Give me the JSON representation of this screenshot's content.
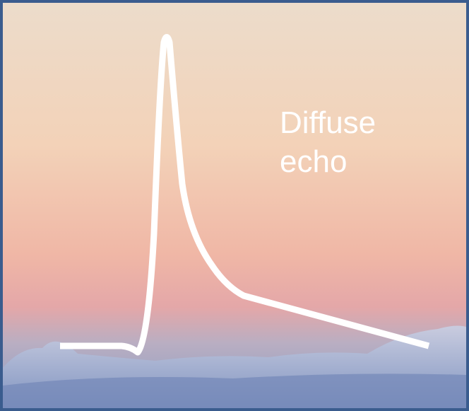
{
  "label": {
    "lines": [
      "Diffuse",
      "echo"
    ]
  }
}
